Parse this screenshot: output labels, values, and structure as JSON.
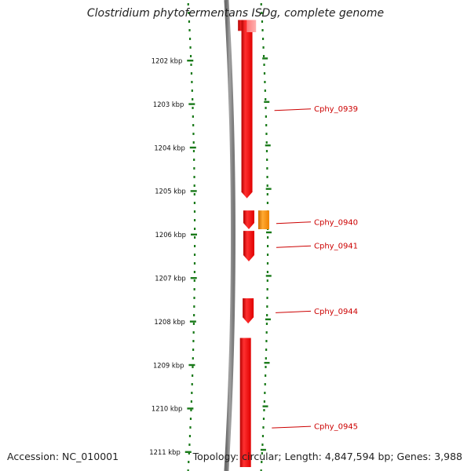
{
  "title": "Clostridium phytofermentans ISDg, complete genome",
  "accession": "Accession: NC_010001",
  "topology": "Topology: circular; Length: 4,847,594 bp; Genes: 3,988",
  "colors": {
    "gene_forward": "#ff0000",
    "gene_other": "#ff8800",
    "backbone": "#8a8a8a",
    "ruler": "#1a7a1a",
    "label": "#cc0000"
  },
  "ruler": {
    "unit": "kbp",
    "ticks": [
      {
        "kbp": 1202,
        "label": "1202 kbp"
      },
      {
        "kbp": 1203,
        "label": "1203 kbp"
      },
      {
        "kbp": 1204,
        "label": "1204 kbp"
      },
      {
        "kbp": 1205,
        "label": "1205 kbp"
      },
      {
        "kbp": 1206,
        "label": "1206 kbp"
      },
      {
        "kbp": 1207,
        "label": "1207 kbp"
      },
      {
        "kbp": 1208,
        "label": "1208 kbp"
      },
      {
        "kbp": 1209,
        "label": "1209 kbp"
      },
      {
        "kbp": 1210,
        "label": "1210 kbp"
      },
      {
        "kbp": 1211,
        "label": "1211 kbp"
      }
    ]
  },
  "genes": [
    {
      "name": "",
      "start_kbp": 1201.07,
      "end_kbp": 1201.32,
      "color": "#ff0000",
      "track": "inner"
    },
    {
      "name": "",
      "start_kbp": 1201.07,
      "end_kbp": 1205.17,
      "color": "#ff0000",
      "track": "inner"
    },
    {
      "name": "",
      "start_kbp": 1201.07,
      "end_kbp": 1201.35,
      "color": "#ff9a9a",
      "track": "inner-right"
    },
    {
      "name": "Cphy_0940",
      "start_kbp": 1205.45,
      "end_kbp": 1205.88,
      "color": "#ff0000",
      "track": "inner"
    },
    {
      "name": "",
      "start_kbp": 1205.45,
      "end_kbp": 1205.88,
      "color": "#ff8800",
      "track": "outer"
    },
    {
      "name": "Cphy_0941",
      "start_kbp": 1205.92,
      "end_kbp": 1206.62,
      "color": "#ff0000",
      "track": "inner"
    },
    {
      "name": "Cphy_0944",
      "start_kbp": 1207.47,
      "end_kbp": 1208.05,
      "color": "#ff0000",
      "track": "inner"
    },
    {
      "name": "",
      "start_kbp": 1208.38,
      "end_kbp": 1211.35,
      "color": "#ff0000",
      "track": "inner"
    }
  ],
  "labels": [
    {
      "text": "Cphy_0939",
      "kbp": 1203.15
    },
    {
      "text": "Cphy_0940",
      "kbp": 1205.75
    },
    {
      "text": "Cphy_0941",
      "kbp": 1206.3
    },
    {
      "text": "Cphy_0944",
      "kbp": 1207.8
    },
    {
      "text": "Cphy_0945",
      "kbp": 1210.45
    }
  ]
}
